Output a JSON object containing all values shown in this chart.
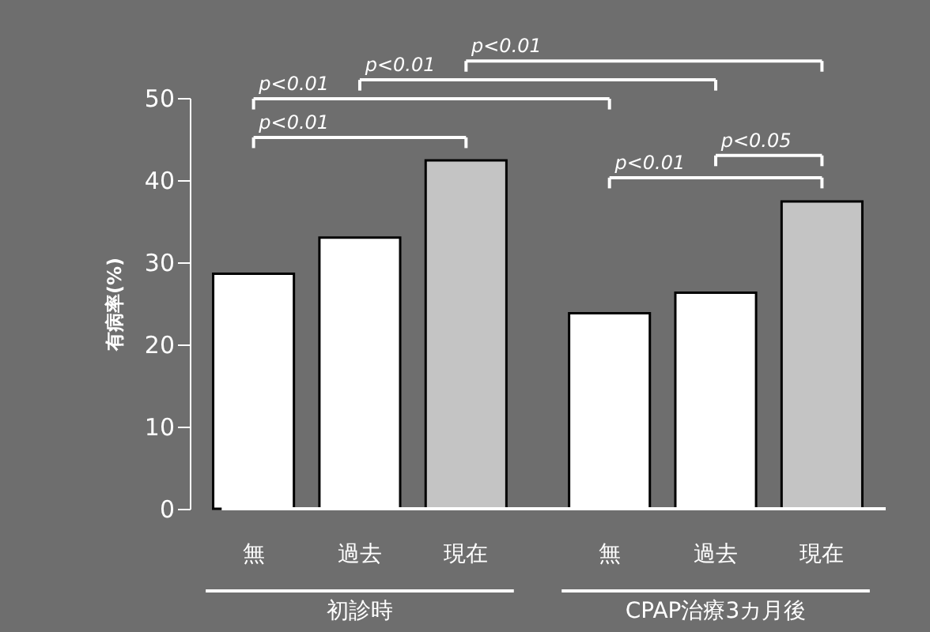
{
  "chart_data": {
    "type": "bar",
    "ylabel": "有病率(%)",
    "categories": [
      "無",
      "過去",
      "現在",
      "無",
      "過去",
      "現在"
    ],
    "values": [
      28.6,
      33.0,
      42.4,
      23.8,
      26.3,
      37.4
    ],
    "colors": [
      "#ffffff",
      "#ffffff",
      "#c4c4c4",
      "#ffffff",
      "#ffffff",
      "#c4c4c4"
    ],
    "ylim": [
      0,
      50
    ],
    "yticks": [
      0,
      10,
      20,
      30,
      40,
      50
    ],
    "grid": false,
    "annotations": [
      "p<0.01",
      "p<0.01",
      "p<0.01",
      "p<0.01",
      "p<0.05",
      "p<0.01",
      "初診時",
      "CPAP治療3カ月後"
    ]
  }
}
